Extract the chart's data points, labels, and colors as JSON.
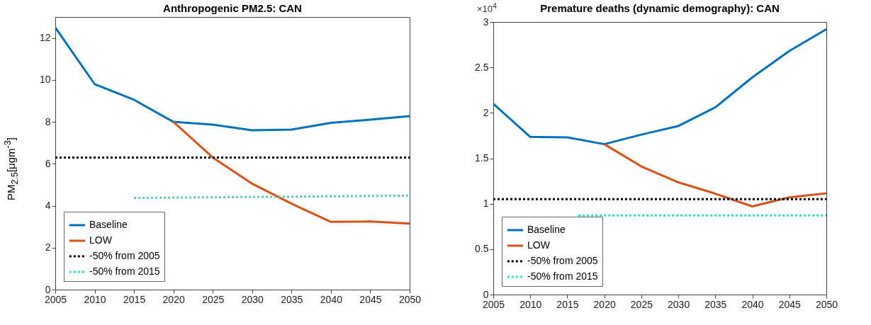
{
  "chart_data": [
    {
      "type": "line",
      "title": "Anthropogenic PM2.5: CAN",
      "ylabel": "PM$_{2.5}$[μgm$^{-3}$]",
      "x": [
        2005,
        2010,
        2015,
        2020,
        2025,
        2030,
        2035,
        2040,
        2045,
        2050
      ],
      "xlim": [
        2005,
        2050
      ],
      "xticks": [
        2005,
        2010,
        2015,
        2020,
        2025,
        2030,
        2035,
        2040,
        2045,
        2050
      ],
      "ylim": [
        0,
        13
      ],
      "yticks": [
        0,
        2,
        4,
        6,
        8,
        10,
        12
      ],
      "legend": "bottom left",
      "series": [
        {
          "name": "Baseline",
          "color": "#0072bd",
          "line_style": "solid",
          "values": [
            12.5,
            9.8,
            9.05,
            8.0,
            7.87,
            7.6,
            7.63,
            7.95,
            8.1,
            8.27
          ]
        },
        {
          "name": "LOW",
          "color": "#d95319",
          "line_style": "solid",
          "values": [
            null,
            null,
            null,
            8.0,
            6.3,
            5.05,
            4.1,
            3.23,
            3.25,
            3.15
          ]
        },
        {
          "name": "-50% from 2005",
          "color": "#000000",
          "line_style": "dotted",
          "x": [
            2005,
            2050
          ],
          "values": [
            6.3,
            6.3
          ]
        },
        {
          "name": "-50% from 2015",
          "color": "#40d9b5",
          "line_style": "dotted",
          "x": [
            2015,
            2050
          ],
          "values": [
            4.37,
            4.48
          ]
        }
      ]
    },
    {
      "type": "line",
      "title": "Premature deaths (dynamic demography): CAN",
      "annotations": [
        "×10$^{4}$"
      ],
      "x": [
        2005,
        2010,
        2015,
        2020,
        2025,
        2030,
        2035,
        2040,
        2045,
        2050
      ],
      "xlim": [
        2005,
        2050
      ],
      "xticks": [
        2005,
        2010,
        2015,
        2020,
        2025,
        2030,
        2035,
        2040,
        2045,
        2050
      ],
      "ylim": [
        0,
        3
      ],
      "yticks": [
        0,
        0.5,
        1,
        1.5,
        2,
        2.5,
        3
      ],
      "legend": "bottom left",
      "series": [
        {
          "name": "Baseline",
          "color": "#0072bd",
          "line_style": "solid",
          "values": [
            2.1,
            1.735,
            1.73,
            1.655,
            1.76,
            1.855,
            2.06,
            2.39,
            2.68,
            2.92
          ]
        },
        {
          "name": "LOW",
          "color": "#d95319",
          "line_style": "solid",
          "values": [
            null,
            null,
            null,
            1.655,
            1.41,
            1.235,
            1.11,
            0.97,
            1.07,
            1.115
          ]
        },
        {
          "name": "-50% from 2005",
          "color": "#000000",
          "line_style": "dotted",
          "x": [
            2005,
            2050
          ],
          "values": [
            1.05,
            1.05
          ]
        },
        {
          "name": "-50% from 2015",
          "color": "#40d9b5",
          "line_style": "dotted",
          "x": [
            2016.5,
            2050
          ],
          "values": [
            0.87,
            0.87
          ]
        }
      ]
    }
  ]
}
